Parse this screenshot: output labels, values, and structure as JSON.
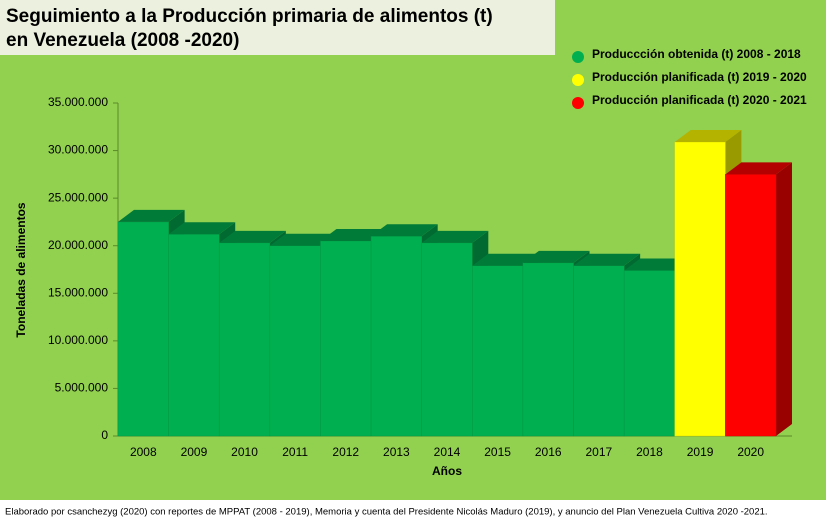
{
  "chart_data": {
    "type": "bar3d",
    "title": "Seguimiento a la Producción primaria de alimentos (t)",
    "subtitle": "en Venezuela (2008 -2020)",
    "y_label": "Toneladas de alimentos",
    "x_label": "Años",
    "note": "Elaborado por csanchezyg (2020) con reportes de MPPAT (2008 - 2019), Memoria y cuenta del Presidente Nicolás Maduro (2019), y anuncio del Plan Venezuela Cultiva 2020 -2021.",
    "categories": [
      "2008",
      "2009",
      "2010",
      "2011",
      "2012",
      "2013",
      "2014",
      "2015",
      "2016",
      "2017",
      "2018",
      "2019",
      "2020"
    ],
    "series": [
      {
        "name": "Produccción obtenida (t) 2008 -  2018",
        "color": "#00b050",
        "values": [
          22500000,
          21200000,
          20300000,
          20000000,
          20500000,
          21000000,
          20300000,
          17900000,
          18200000,
          17900000,
          17400000,
          null,
          null
        ]
      },
      {
        "name": "Producción planificada (t) 2019 - 2020",
        "color": "#ffff00",
        "values": [
          null,
          null,
          null,
          null,
          null,
          null,
          null,
          null,
          null,
          null,
          null,
          30900000,
          null
        ]
      },
      {
        "name": "Producción planificada (t) 2020 - 2021",
        "color": "#ff0000",
        "values": [
          null,
          null,
          null,
          null,
          null,
          null,
          null,
          null,
          null,
          null,
          null,
          null,
          27500000
        ]
      }
    ],
    "ylim": [
      0,
      35000000
    ],
    "yticks": [
      0,
      {
        "value": 5000000,
        "label": "5.000.000"
      },
      {
        "value": 10000000,
        "label": "10.000.000"
      },
      {
        "value": 15000000,
        "label": "15.000.000"
      },
      {
        "value": 20000000,
        "label": "20.000.000"
      },
      {
        "value": 25000000,
        "label": "25.000.000"
      },
      {
        "value": 30000000,
        "label": "30.000.000"
      },
      {
        "value": 35000000,
        "label": "35.000.000"
      }
    ]
  }
}
